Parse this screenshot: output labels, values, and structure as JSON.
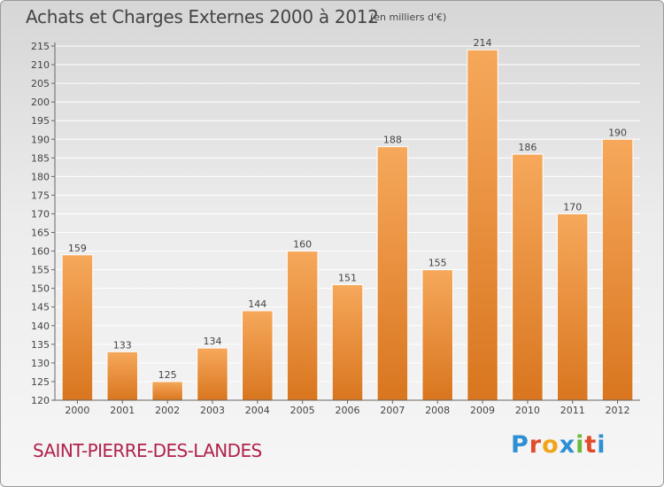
{
  "header": {
    "title": "Achats et Charges Externes 2000 à 2012",
    "subtitle": "(en milliers d'€)"
  },
  "footer": {
    "commune": "SAINT-PIERRE-DES-LANDES",
    "brand_letters": [
      "P",
      "r",
      "o",
      "x",
      "i",
      "t",
      "i"
    ],
    "brand_colors": [
      "#2f8fd3",
      "#e24b2a",
      "#f0a51b",
      "#2f8fd3",
      "#6cb83a",
      "#e24b2a",
      "#2f8fd3"
    ]
  },
  "colors": {
    "bar_light": "#f6a85b",
    "bar_dark": "#d9761f",
    "text": "#444444",
    "grid": "#ffffff"
  },
  "chart_data": {
    "type": "bar",
    "title": "Achats et Charges Externes 2000 à 2012",
    "subtitle": "(en milliers d'€)",
    "xlabel": "",
    "ylabel": "",
    "categories": [
      "2000",
      "2001",
      "2002",
      "2003",
      "2004",
      "2005",
      "2006",
      "2007",
      "2008",
      "2009",
      "2010",
      "2011",
      "2012"
    ],
    "values": [
      159,
      133,
      125,
      134,
      144,
      160,
      151,
      188,
      155,
      214,
      186,
      170,
      190
    ],
    "ylim": [
      120,
      215
    ],
    "yticks": [
      120,
      125,
      130,
      135,
      140,
      145,
      150,
      155,
      160,
      165,
      170,
      175,
      180,
      185,
      190,
      195,
      200,
      205,
      210,
      215
    ],
    "grid": true
  }
}
